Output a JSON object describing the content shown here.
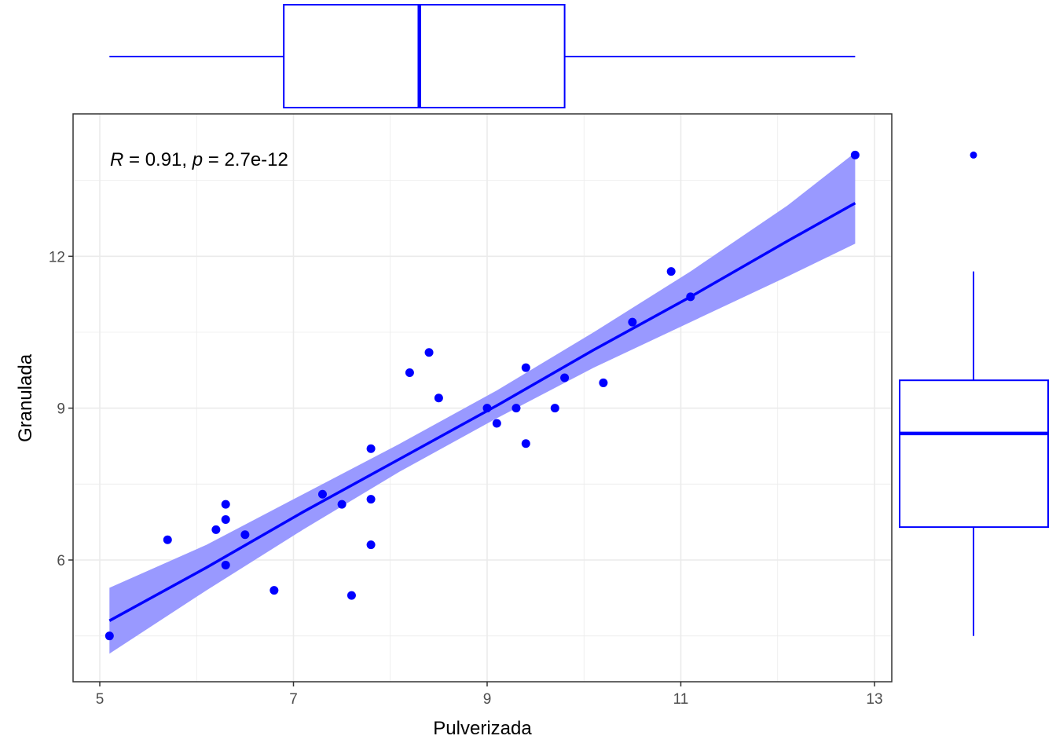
{
  "chart_data": {
    "type": "scatter",
    "title": "",
    "xlabel": "Pulverizada",
    "ylabel": "Granulada",
    "xlim": [
      4.85,
      13.15
    ],
    "ylim": [
      4.05,
      14.5
    ],
    "xticks": [
      5,
      7,
      9,
      11,
      13
    ],
    "yticks": [
      6,
      9,
      12
    ],
    "grid": true,
    "colors": {
      "points": "#0000ff",
      "line": "#0000ff",
      "band": "#9999ff",
      "grid": "#ebebeb",
      "panel_border": "#333333"
    },
    "annotation": {
      "r_symbol": "R",
      "r_text": " = 0.91, ",
      "p_symbol": "p",
      "p_text": " = 2.7e-12"
    },
    "points": [
      {
        "x": 5.1,
        "y": 4.5
      },
      {
        "x": 5.7,
        "y": 6.4
      },
      {
        "x": 6.2,
        "y": 6.6
      },
      {
        "x": 6.3,
        "y": 7.1
      },
      {
        "x": 6.3,
        "y": 6.8
      },
      {
        "x": 6.3,
        "y": 5.9
      },
      {
        "x": 6.5,
        "y": 6.5
      },
      {
        "x": 6.8,
        "y": 5.4
      },
      {
        "x": 7.3,
        "y": 7.3
      },
      {
        "x": 7.5,
        "y": 7.1
      },
      {
        "x": 7.6,
        "y": 5.3
      },
      {
        "x": 7.8,
        "y": 8.2
      },
      {
        "x": 7.8,
        "y": 7.2
      },
      {
        "x": 7.8,
        "y": 6.3
      },
      {
        "x": 8.2,
        "y": 9.7
      },
      {
        "x": 8.4,
        "y": 10.1
      },
      {
        "x": 8.5,
        "y": 9.2
      },
      {
        "x": 9.0,
        "y": 9.0
      },
      {
        "x": 9.1,
        "y": 8.7
      },
      {
        "x": 9.3,
        "y": 9.0
      },
      {
        "x": 9.4,
        "y": 9.8
      },
      {
        "x": 9.4,
        "y": 8.3
      },
      {
        "x": 9.7,
        "y": 9.0
      },
      {
        "x": 9.8,
        "y": 9.6
      },
      {
        "x": 10.2,
        "y": 9.5
      },
      {
        "x": 10.5,
        "y": 10.7
      },
      {
        "x": 10.9,
        "y": 11.7
      },
      {
        "x": 11.1,
        "y": 11.2
      },
      {
        "x": 12.8,
        "y": 14.0
      }
    ],
    "regression": {
      "x": [
        5.1,
        6.1,
        7.1,
        8.1,
        9.1,
        10.1,
        11.1,
        12.1,
        12.8
      ],
      "fit": [
        4.8,
        5.85,
        6.95,
        8.0,
        9.05,
        10.15,
        11.2,
        12.3,
        13.05
      ],
      "lower": [
        4.15,
        5.4,
        6.6,
        7.75,
        8.8,
        9.8,
        10.7,
        11.6,
        12.25
      ],
      "upper": [
        5.45,
        6.3,
        7.3,
        8.3,
        9.35,
        10.5,
        11.7,
        13.0,
        14.05
      ]
    },
    "marginal_x_boxplot": {
      "whisker_low": 5.1,
      "q1": 6.9,
      "median": 8.3,
      "q3": 9.8,
      "whisker_high": 12.8
    },
    "marginal_y_boxplot": {
      "whisker_low": 4.5,
      "q1": 6.65,
      "median": 8.5,
      "q3": 9.55,
      "whisker_high": 11.7,
      "outliers": [
        14.0
      ]
    }
  }
}
